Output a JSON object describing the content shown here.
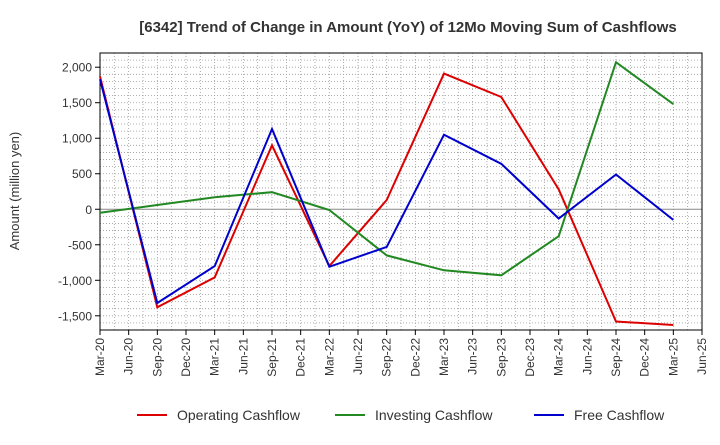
{
  "chart_data": {
    "type": "line",
    "title": "[6342]  Trend of Change in Amount (YoY) of 12Mo Moving Sum of Cashflows",
    "xlabel": "",
    "ylabel": "Amount (million yen)",
    "ylim": [
      -1700,
      2200
    ],
    "yticks": [
      -1500,
      -1000,
      -500,
      0,
      500,
      1000,
      1500,
      2000
    ],
    "ytick_labels": [
      "-1,500",
      "-1,000",
      "-500",
      "0",
      "500",
      "1,000",
      "1,500",
      "2,000"
    ],
    "categories": [
      "Mar-20",
      "Jun-20",
      "Sep-20",
      "Dec-20",
      "Mar-21",
      "Jun-21",
      "Sep-21",
      "Dec-21",
      "Mar-22",
      "Jun-22",
      "Sep-22",
      "Dec-22",
      "Mar-23",
      "Jun-23",
      "Sep-23",
      "Dec-23",
      "Mar-24",
      "Jun-24",
      "Sep-24",
      "Dec-24",
      "Mar-25",
      "Jun-25"
    ],
    "grid": true,
    "legend_position": "bottom",
    "series": [
      {
        "name": "Operating Cashflow",
        "color": "#dd0000",
        "points": [
          {
            "x": "Mar-20",
            "y": 1870
          },
          {
            "x": "Sep-20",
            "y": -1380
          },
          {
            "x": "Mar-21",
            "y": -960
          },
          {
            "x": "Sep-21",
            "y": 900
          },
          {
            "x": "Mar-22",
            "y": -800
          },
          {
            "x": "Sep-22",
            "y": 130
          },
          {
            "x": "Mar-23",
            "y": 1910
          },
          {
            "x": "Sep-23",
            "y": 1580
          },
          {
            "x": "Mar-24",
            "y": 280
          },
          {
            "x": "Sep-24",
            "y": -1580
          },
          {
            "x": "Mar-25",
            "y": -1630
          }
        ]
      },
      {
        "name": "Investing Cashflow",
        "color": "#228822",
        "points": [
          {
            "x": "Mar-20",
            "y": -50
          },
          {
            "x": "Sep-20",
            "y": 60
          },
          {
            "x": "Mar-21",
            "y": 170
          },
          {
            "x": "Sep-21",
            "y": 240
          },
          {
            "x": "Mar-22",
            "y": -10
          },
          {
            "x": "Sep-22",
            "y": -650
          },
          {
            "x": "Mar-23",
            "y": -860
          },
          {
            "x": "Sep-23",
            "y": -930
          },
          {
            "x": "Mar-24",
            "y": -380
          },
          {
            "x": "Sep-24",
            "y": 2070
          },
          {
            "x": "Mar-25",
            "y": 1480
          }
        ]
      },
      {
        "name": "Free Cashflow",
        "color": "#0000cc",
        "points": [
          {
            "x": "Mar-20",
            "y": 1830
          },
          {
            "x": "Sep-20",
            "y": -1320
          },
          {
            "x": "Mar-21",
            "y": -800
          },
          {
            "x": "Sep-21",
            "y": 1130
          },
          {
            "x": "Mar-22",
            "y": -810
          },
          {
            "x": "Sep-22",
            "y": -530
          },
          {
            "x": "Mar-23",
            "y": 1050
          },
          {
            "x": "Sep-23",
            "y": 640
          },
          {
            "x": "Mar-24",
            "y": -130
          },
          {
            "x": "Sep-24",
            "y": 490
          },
          {
            "x": "Mar-25",
            "y": -150
          }
        ]
      }
    ]
  }
}
